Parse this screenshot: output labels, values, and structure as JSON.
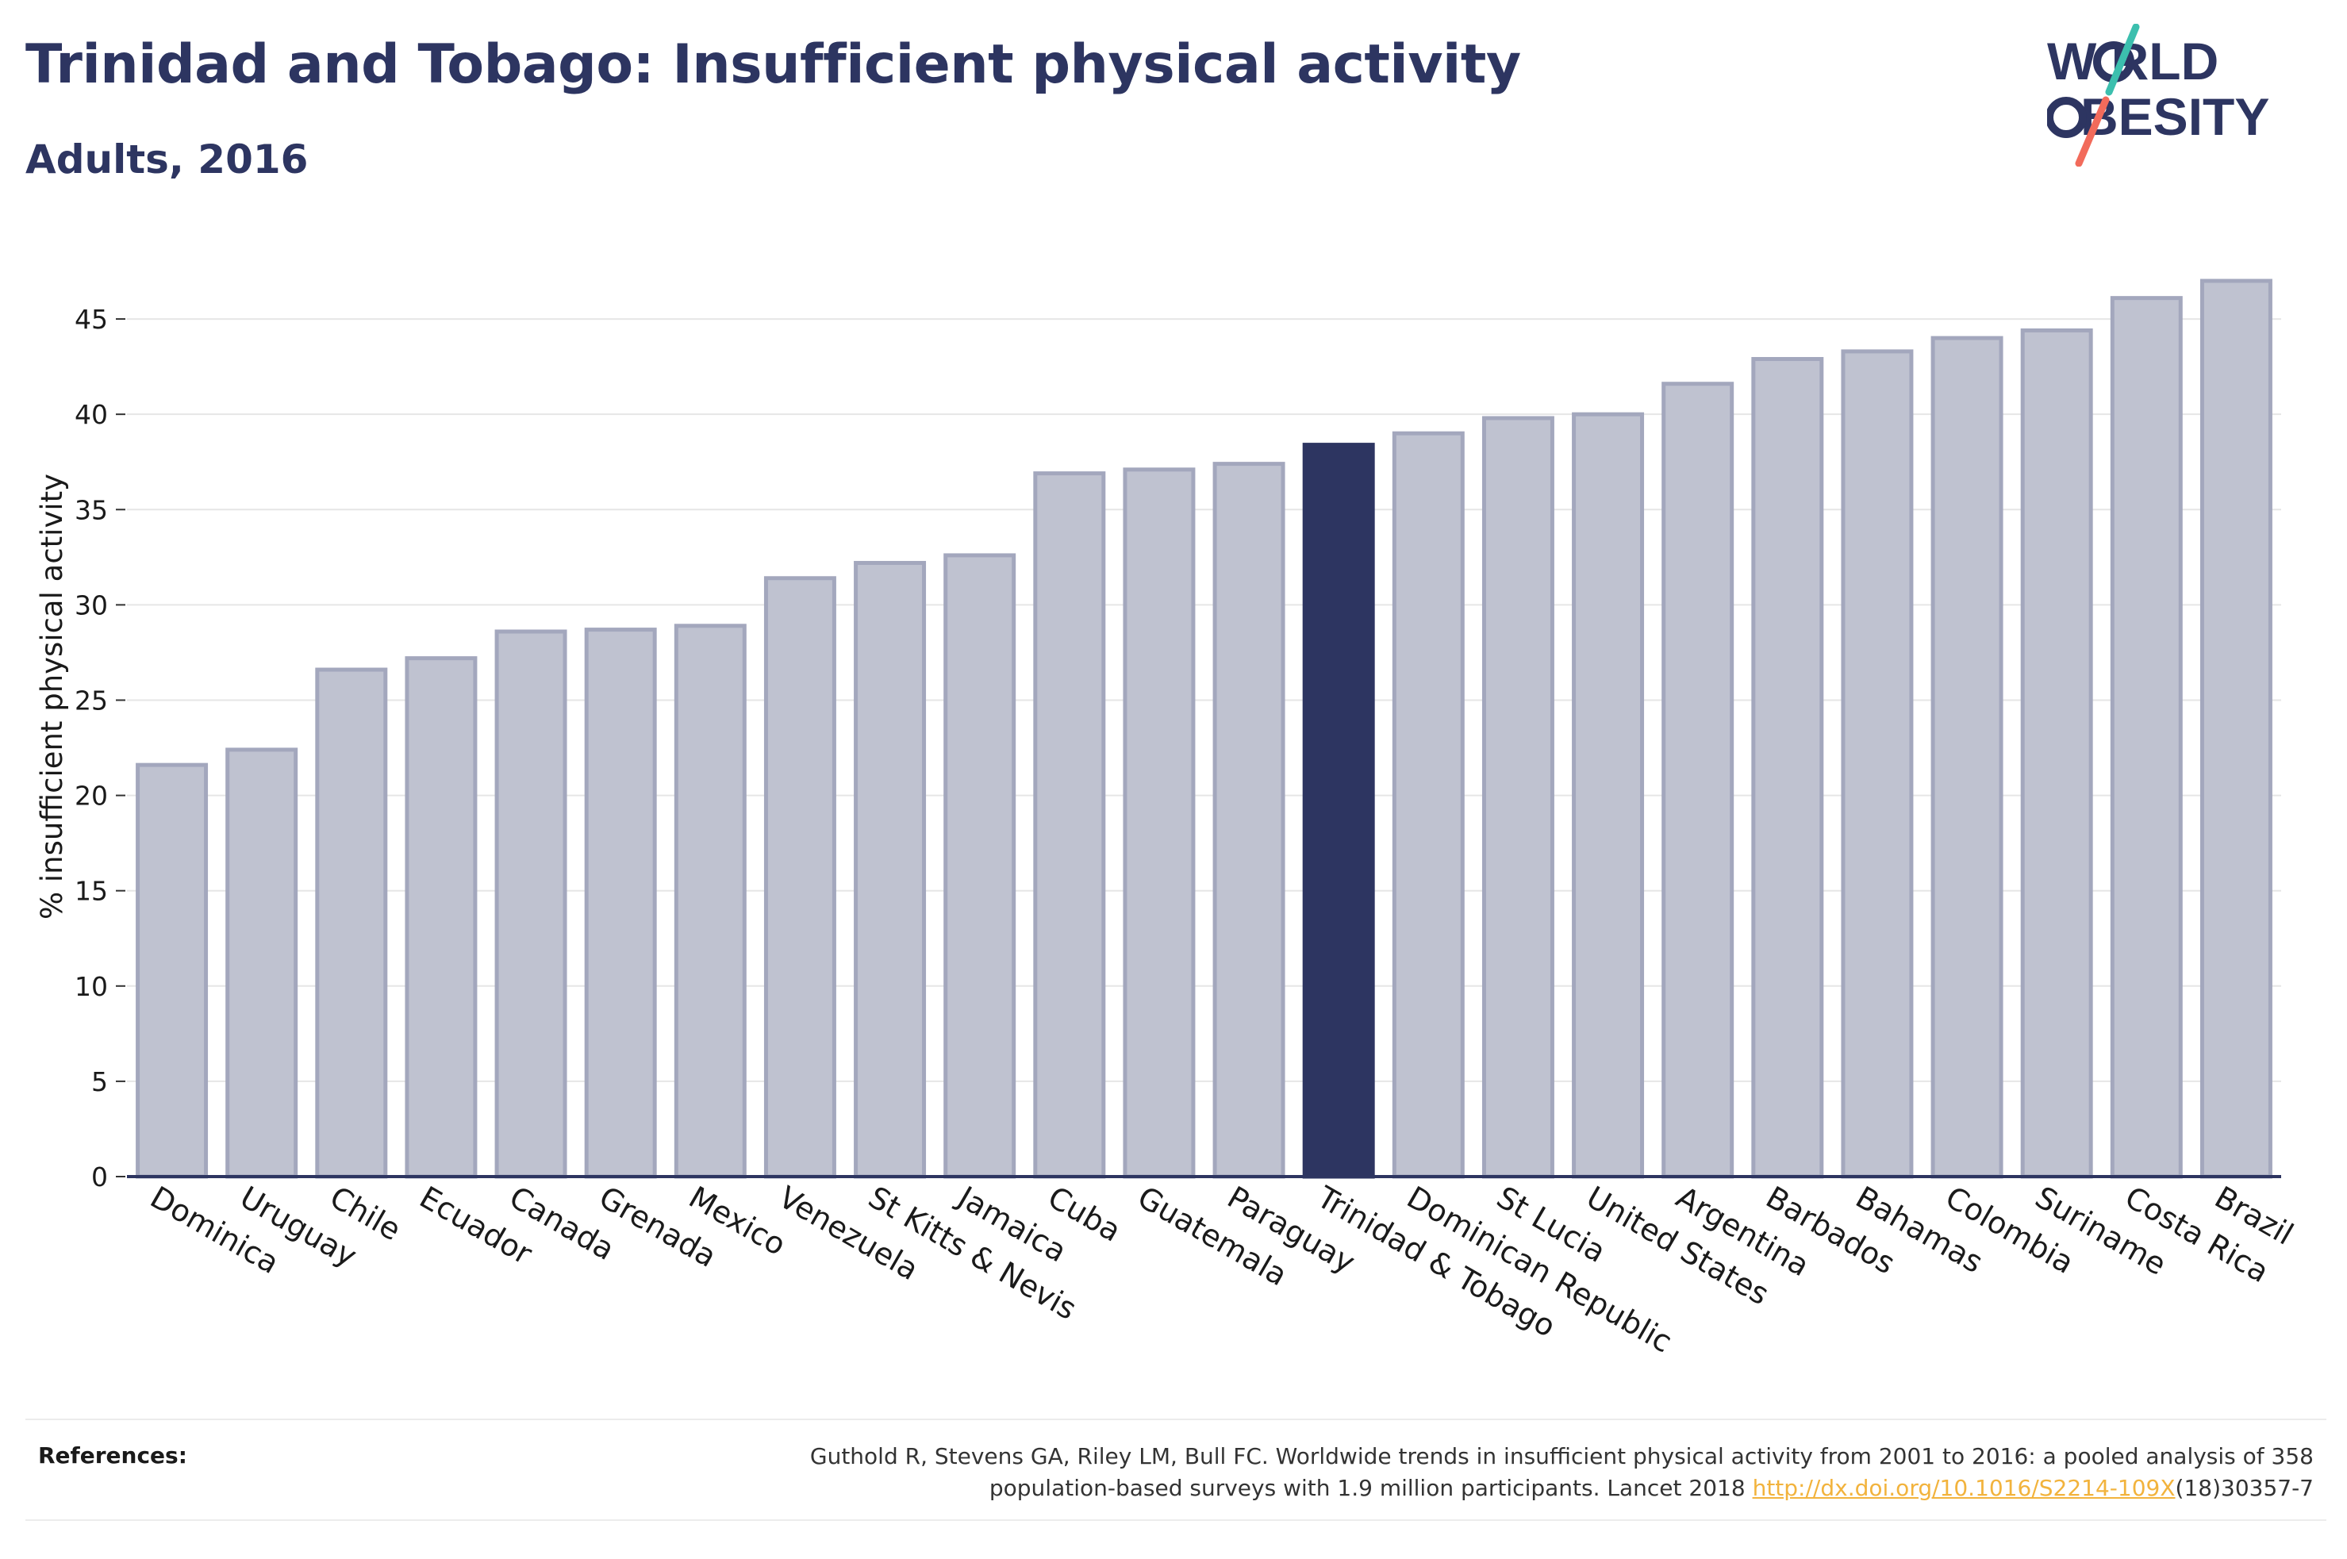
{
  "header": {
    "title": "Trinidad and Tobago: Insufficient physical activity",
    "subtitle": "Adults, 2016"
  },
  "logo": {
    "line1": "W RLD",
    "line2": "BESITY",
    "accent_teal": "#3cbfae",
    "accent_coral": "#f26b5b",
    "text_color": "#2d3561"
  },
  "colors": {
    "bar_default": "#bfc2d0",
    "bar_border": "#a3a7bd",
    "bar_highlight": "#2d3561",
    "grid": "#e6e6e6",
    "axis": "#2d3561"
  },
  "chart_data": {
    "type": "bar",
    "title": "Trinidad and Tobago: Insufficient physical activity",
    "subtitle": "Adults, 2016",
    "xlabel": "",
    "ylabel": "% insufficient physical activity",
    "ylim": [
      0,
      48
    ],
    "yticks": [
      0,
      5,
      10,
      15,
      20,
      25,
      30,
      35,
      40,
      45
    ],
    "grid": true,
    "highlight": "Trinidad & Tobago",
    "categories": [
      "Dominica",
      "Uruguay",
      "Chile",
      "Ecuador",
      "Canada",
      "Grenada",
      "Mexico",
      "Venezuela",
      "St Kitts & Nevis",
      "Jamaica",
      "Cuba",
      "Guatemala",
      "Paraguay",
      "Trinidad & Tobago",
      "Dominican Republic",
      "St Lucia",
      "United States",
      "Argentina",
      "Barbados",
      "Bahamas",
      "Colombia",
      "Suriname",
      "Costa Rica",
      "Brazil"
    ],
    "values": [
      21.6,
      22.4,
      26.6,
      27.2,
      28.6,
      28.7,
      28.9,
      31.4,
      32.2,
      32.6,
      36.9,
      37.1,
      37.4,
      38.4,
      39.0,
      39.8,
      40.0,
      41.6,
      42.9,
      43.3,
      44.0,
      44.4,
      46.1,
      47.0
    ]
  },
  "references": {
    "label": "References:",
    "text_line1": "Guthold R, Stevens GA, Riley LM, Bull FC. Worldwide trends in insufficient physical activity from 2001 to 2016: a pooled analysis of 358",
    "text_line2_pre": "population-based surveys with 1.9 million participants. Lancet 2018 ",
    "link": "http://dx.doi.org/10.1016/S2214-109X",
    "text_line2_post": "(18)30357-7"
  }
}
